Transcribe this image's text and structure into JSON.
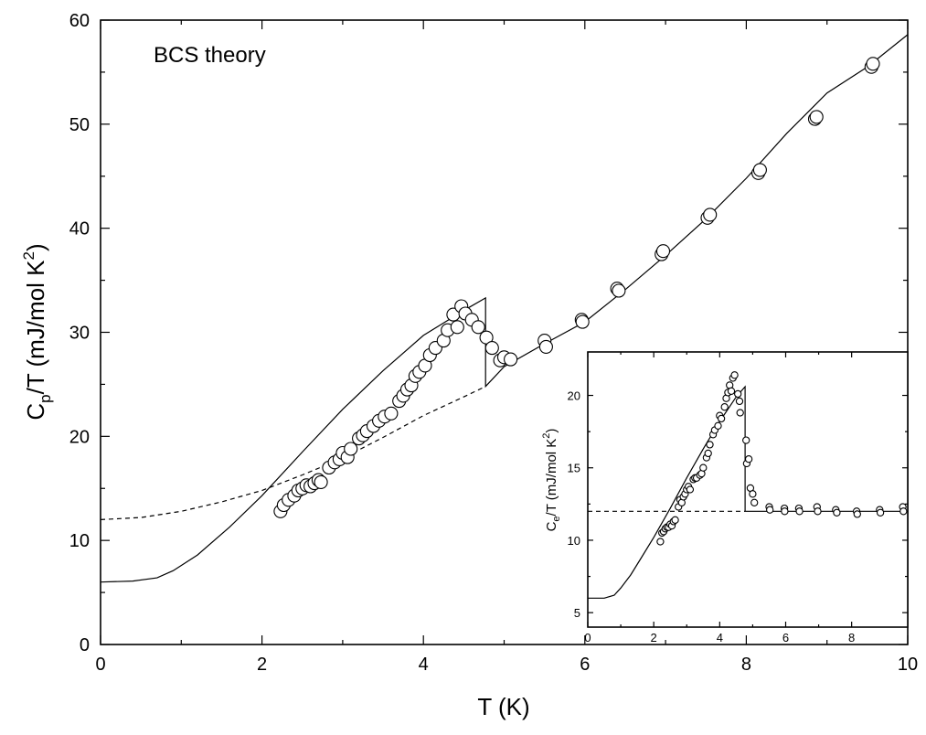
{
  "chart_data": [
    {
      "type": "scatter",
      "annotation": "BCS theory",
      "xlabel": "T (K)",
      "ylabel": {
        "main": "C",
        "sub": "p",
        "rest": "/T  (mJ/mol K",
        "sup": "2",
        "close": ")"
      },
      "xlim": [
        0,
        10
      ],
      "ylim": [
        0,
        60
      ],
      "xticks": [
        0,
        2,
        4,
        6,
        8,
        10
      ],
      "yticks": [
        0,
        10,
        20,
        30,
        40,
        50,
        60
      ],
      "grid": false,
      "series": [
        {
          "style": "open-circles",
          "x": [
            2.23,
            2.27,
            2.33,
            2.4,
            2.45,
            2.5,
            2.55,
            2.6,
            2.65,
            2.7,
            2.73,
            2.83,
            2.9,
            2.96,
            3.0,
            3.06,
            3.1,
            3.2,
            3.25,
            3.3,
            3.38,
            3.45,
            3.52,
            3.6,
            3.7,
            3.75,
            3.8,
            3.85,
            3.9,
            3.95,
            4.02,
            4.08,
            4.15,
            4.25,
            4.3,
            4.37,
            4.42,
            4.47,
            4.52,
            4.6,
            4.68,
            4.78,
            4.85,
            4.95,
            5.0,
            5.08,
            5.5,
            5.52,
            5.96,
            5.97,
            6.4,
            6.42,
            6.95,
            6.97,
            7.52,
            7.55,
            8.15,
            8.17,
            8.85,
            8.87,
            9.55,
            9.57
          ],
          "y": [
            12.8,
            13.4,
            13.9,
            14.3,
            14.8,
            15.0,
            15.3,
            15.2,
            15.5,
            15.8,
            15.6,
            17.0,
            17.5,
            17.8,
            18.4,
            18.0,
            18.8,
            19.8,
            20.1,
            20.5,
            21.0,
            21.5,
            21.9,
            22.2,
            23.4,
            23.9,
            24.5,
            24.9,
            25.8,
            26.2,
            26.8,
            27.8,
            28.5,
            29.2,
            30.2,
            31.7,
            30.5,
            32.5,
            31.8,
            31.2,
            30.5,
            29.5,
            28.5,
            27.3,
            27.6,
            27.4,
            29.2,
            28.6,
            31.2,
            31.0,
            34.2,
            34.0,
            37.5,
            37.8,
            41.0,
            41.3,
            45.3,
            45.6,
            50.5,
            50.7,
            55.5,
            55.8
          ]
        },
        {
          "style": "solid-line",
          "x": [
            0,
            0.4,
            0.7,
            0.9,
            1.2,
            1.6,
            2.0,
            2.5,
            3.0,
            3.5,
            4.0,
            4.5,
            4.77,
            4.77,
            5.0,
            5.5,
            6.0,
            6.5,
            7.0,
            7.5,
            8.0,
            8.5,
            9.0,
            9.5,
            10.0
          ],
          "y": [
            6.0,
            6.1,
            6.4,
            7.1,
            8.6,
            11.3,
            14.3,
            18.5,
            22.6,
            26.3,
            29.7,
            32.1,
            33.3,
            24.8,
            26.7,
            28.9,
            31.0,
            34.1,
            37.4,
            40.9,
            44.8,
            49.1,
            53.0,
            55.5,
            58.6
          ]
        },
        {
          "style": "dashed-line",
          "x": [
            0,
            0.5,
            1.0,
            1.5,
            2.0,
            2.5,
            3.0,
            3.5,
            4.0,
            4.5,
            4.77
          ],
          "y": [
            12.0,
            12.2,
            12.8,
            13.7,
            14.8,
            16.3,
            17.9,
            19.9,
            22.0,
            23.8,
            24.8
          ]
        }
      ]
    },
    {
      "type": "scatter",
      "inset": true,
      "xlabel": "",
      "ylabel": {
        "main": "C",
        "sub": "e",
        "rest": "/T  (mJ/mol K",
        "sup": "2",
        "close": ")"
      },
      "xlim": [
        0,
        9.7
      ],
      "ylim": [
        4,
        23
      ],
      "xticks": [
        0,
        2,
        4,
        6,
        8
      ],
      "yticks": [
        5,
        10,
        15,
        20
      ],
      "series": [
        {
          "style": "open-circles",
          "x": [
            2.2,
            2.25,
            2.3,
            2.35,
            2.4,
            2.45,
            2.5,
            2.55,
            2.6,
            2.65,
            2.75,
            2.8,
            2.85,
            2.9,
            2.95,
            3.0,
            3.05,
            3.1,
            3.2,
            3.25,
            3.3,
            3.4,
            3.45,
            3.5,
            3.6,
            3.65,
            3.7,
            3.8,
            3.85,
            3.95,
            4.0,
            4.05,
            4.15,
            4.2,
            4.25,
            4.3,
            4.35,
            4.4,
            4.45,
            4.55,
            4.6,
            4.62,
            4.8,
            4.82,
            4.88,
            4.93,
            5.0,
            5.05,
            5.5,
            5.52,
            5.96,
            5.97,
            6.4,
            6.42,
            6.95,
            6.97,
            7.52,
            7.55,
            8.15,
            8.17,
            8.85,
            8.87,
            9.55,
            9.57
          ],
          "y": [
            9.9,
            10.5,
            10.6,
            10.8,
            10.9,
            10.9,
            11.1,
            11.0,
            11.3,
            11.4,
            12.3,
            12.8,
            12.6,
            13.0,
            13.2,
            13.5,
            13.7,
            13.5,
            14.2,
            14.3,
            14.3,
            14.5,
            14.6,
            15.0,
            15.7,
            16.0,
            16.6,
            17.3,
            17.6,
            17.9,
            18.6,
            18.4,
            19.2,
            19.8,
            20.2,
            20.7,
            20.3,
            21.2,
            21.4,
            20.1,
            19.6,
            18.8,
            16.9,
            15.3,
            15.6,
            13.6,
            13.2,
            12.6,
            12.3,
            12.1,
            12.2,
            12.0,
            12.2,
            12.0,
            12.3,
            12.0,
            12.1,
            11.9,
            12.0,
            11.8,
            12.1,
            11.9,
            12.3,
            12.0
          ]
        },
        {
          "style": "solid-line",
          "x": [
            0,
            0.5,
            0.8,
            1.0,
            1.3,
            1.6,
            2.0,
            2.5,
            3.0,
            3.5,
            4.0,
            4.5,
            4.77,
            4.77,
            9.7
          ],
          "y": [
            6.0,
            6.0,
            6.2,
            6.7,
            7.6,
            8.7,
            10.2,
            12.2,
            14.3,
            16.3,
            18.2,
            19.9,
            20.6,
            12.0,
            12.0
          ]
        },
        {
          "style": "dashed-line",
          "x": [
            0,
            4.77
          ],
          "y": [
            12.0,
            12.0
          ]
        }
      ]
    }
  ]
}
